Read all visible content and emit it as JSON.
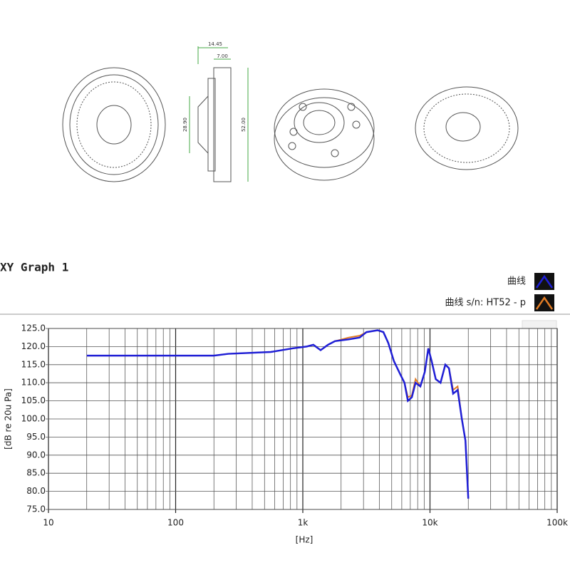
{
  "drawing_labels": [
    "14.45",
    "7.00",
    "28.90",
    "52.00"
  ],
  "chart_data": {
    "type": "line",
    "title": "XY Graph 1",
    "xlabel": "[Hz]",
    "ylabel": "[dB re 20u Pa]",
    "xscale": "log",
    "x": [
      20,
      200,
      260,
      560,
      830,
      1070,
      1210,
      1380,
      1580,
      1790,
      2300,
      2800,
      3170,
      3880,
      4300,
      4700,
      5200,
      5900,
      6300,
      6700,
      7200,
      7700,
      8400,
      9100,
      9700,
      10300,
      11100,
      12100,
      13200,
      14100,
      15200,
      16500,
      17800,
      19000,
      20000
    ],
    "series": [
      {
        "name": "曲线",
        "color": "#1f1fd6",
        "values": [
          117.5,
          117.5,
          118,
          118.5,
          119.5,
          120,
          120.5,
          119,
          120.5,
          121.5,
          122,
          122.5,
          124,
          124.5,
          124,
          121,
          116,
          112,
          110,
          105,
          106,
          110,
          109,
          113,
          119.5,
          116,
          111,
          110,
          115,
          114,
          107,
          108,
          100,
          94,
          78
        ]
      },
      {
        "name": "曲线 s/n: HT52 - p",
        "color": "#e07b24",
        "values": [
          117.5,
          117.5,
          118,
          118.5,
          119.5,
          120,
          120.5,
          119,
          120.5,
          121.5,
          122.5,
          123,
          124,
          124.5,
          124,
          121,
          116,
          112,
          110,
          106,
          106.5,
          111,
          109,
          113,
          119.5,
          116,
          111,
          110,
          115,
          114,
          108,
          109,
          100,
          94,
          78
        ]
      }
    ],
    "xlim": [
      10,
      100000
    ],
    "xticks": [
      10,
      100,
      {
        "value": 1000,
        "label": "1k"
      },
      {
        "value": 10000,
        "label": "10k"
      },
      {
        "value": 100000,
        "label": "100k"
      }
    ],
    "xminorticks": [
      20,
      30,
      40,
      50,
      60,
      70,
      80,
      90,
      200,
      300,
      400,
      500,
      600,
      700,
      800,
      900,
      2000,
      3000,
      4000,
      5000,
      6000,
      7000,
      8000,
      9000,
      20000,
      30000,
      40000,
      50000,
      60000,
      70000,
      80000,
      90000
    ],
    "ylim": [
      75,
      125
    ],
    "yticks": [
      {
        "value": 75,
        "label": "75.0"
      },
      {
        "value": 80,
        "label": "80.0"
      },
      {
        "value": 85,
        "label": "85.0"
      },
      {
        "value": 90,
        "label": "90.0"
      },
      {
        "value": 95,
        "label": "95.0"
      },
      {
        "value": 100,
        "label": "100.0"
      },
      {
        "value": 105,
        "label": "105.0"
      },
      {
        "value": 110,
        "label": "110.0"
      },
      {
        "value": 115,
        "label": "115.0"
      },
      {
        "value": 120,
        "label": "120.0"
      },
      {
        "value": 125,
        "label": "125.0"
      }
    ],
    "grid": true
  }
}
